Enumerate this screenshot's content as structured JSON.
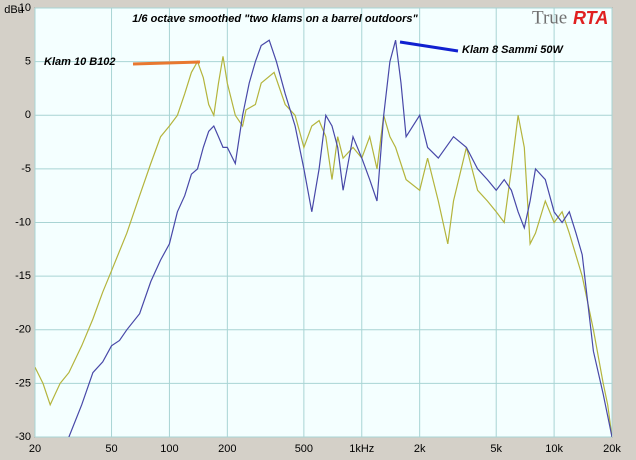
{
  "chart_data": {
    "type": "line",
    "title": "1/6 octave smoothed \"two klams on a barrel outdoors\"",
    "logo": {
      "part1": "True",
      "part2": "RTA"
    },
    "ylabel": "dBu",
    "xscale": "log",
    "xlim": [
      20,
      20000
    ],
    "ylim": [
      -30,
      10
    ],
    "xticks": [
      20,
      50,
      100,
      200,
      500,
      {
        "value": 1000,
        "label": "1kHz"
      },
      {
        "value": 2000,
        "label": "2k"
      },
      {
        "value": 5000,
        "label": "5k"
      },
      {
        "value": 10000,
        "label": "10k"
      },
      {
        "value": 20000,
        "label": "20k"
      }
    ],
    "yticks": [
      10,
      5,
      0,
      -5,
      -10,
      -15,
      -20,
      -25,
      -30
    ],
    "grid": true,
    "series": [
      {
        "name": "Klam 10 B102",
        "color": "#b4b43c",
        "legend_color": "#e87830",
        "x": [
          20,
          22,
          24,
          27,
          30,
          35,
          40,
          45,
          50,
          60,
          70,
          80,
          90,
          100,
          110,
          120,
          130,
          140,
          150,
          160,
          170,
          180,
          190,
          200,
          220,
          240,
          250,
          280,
          300,
          350,
          400,
          450,
          500,
          550,
          600,
          650,
          700,
          750,
          800,
          900,
          1000,
          1100,
          1200,
          1300,
          1400,
          1500,
          1700,
          2000,
          2200,
          2500,
          2800,
          3000,
          3500,
          4000,
          4500,
          5000,
          5500,
          6000,
          6500,
          7000,
          7500,
          8000,
          9000,
          10000,
          11000,
          12000,
          14000,
          16000,
          18000,
          19000,
          20000
        ],
        "values": [
          -23.5,
          -25,
          -27,
          -25,
          -24,
          -21.5,
          -19,
          -16.5,
          -14.5,
          -11,
          -7.5,
          -4.5,
          -2,
          -1,
          0,
          2,
          4,
          5,
          3.5,
          1,
          0,
          3,
          5.5,
          3,
          0,
          -1,
          0.5,
          1,
          3,
          4,
          1,
          0,
          -3,
          -1,
          -0.5,
          -2,
          -6,
          -2,
          -4,
          -3,
          -4,
          -2,
          -5,
          0,
          -2,
          -3,
          -6,
          -7,
          -4,
          -8,
          -12,
          -8,
          -3,
          -7,
          -8,
          -9,
          -10,
          -5,
          0,
          -3,
          -12,
          -11,
          -8,
          -10,
          -9,
          -11,
          -15,
          -20,
          -25,
          -27,
          -30
        ]
      },
      {
        "name": "Klam 8 Sammi 50W",
        "color": "#4848a8",
        "legend_color": "#1020d0",
        "x": [
          30,
          35,
          40,
          45,
          50,
          55,
          60,
          70,
          80,
          90,
          100,
          110,
          120,
          130,
          140,
          150,
          160,
          170,
          180,
          190,
          200,
          220,
          240,
          260,
          280,
          300,
          330,
          360,
          400,
          450,
          500,
          550,
          600,
          650,
          700,
          750,
          800,
          900,
          1000,
          1100,
          1200,
          1300,
          1400,
          1500,
          1600,
          1700,
          2000,
          2200,
          2500,
          3000,
          3500,
          4000,
          4500,
          5000,
          5500,
          6000,
          6500,
          7000,
          7500,
          8000,
          9000,
          10000,
          11000,
          12000,
          13000,
          14000,
          16000,
          18000,
          20000
        ],
        "values": [
          -30,
          -27,
          -24,
          -23,
          -21.5,
          -21,
          -20,
          -18.5,
          -15.5,
          -13.5,
          -12,
          -9,
          -7.5,
          -5.5,
          -5,
          -3,
          -1.5,
          -1,
          -2,
          -3,
          -3,
          -4.5,
          0,
          3,
          5,
          6.5,
          7,
          5,
          2,
          -1,
          -5,
          -9,
          -5,
          0,
          -1,
          -3,
          -7,
          -2,
          -4,
          -6,
          -8,
          0,
          5,
          7,
          3,
          -2,
          0,
          -3,
          -4,
          -2,
          -3,
          -5,
          -6,
          -7,
          -6,
          -7,
          -9,
          -10.5,
          -8,
          -5,
          -6,
          -9,
          -10,
          -9,
          -11,
          -13,
          -22,
          -26,
          -30
        ]
      }
    ]
  }
}
